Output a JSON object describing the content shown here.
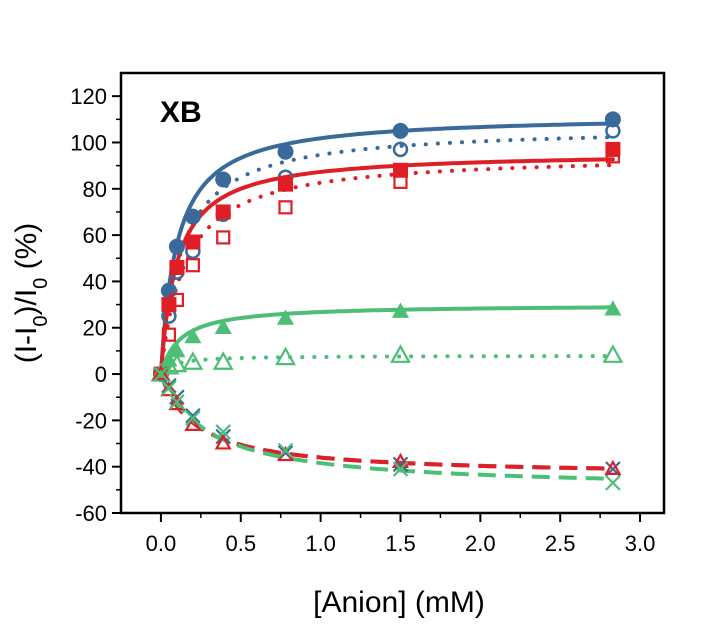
{
  "chart_data": {
    "type": "scatter",
    "title": "",
    "panel_label": "XB",
    "xlabel": "[Anion] (mM)",
    "ylabel": "(I-I0)/I0 (%)",
    "xlim": [
      -0.25,
      3.15
    ],
    "ylim": [
      -60,
      130
    ],
    "x_ticks": [
      0.0,
      0.5,
      1.0,
      1.5,
      2.0,
      2.5,
      3.0
    ],
    "x_tick_labels": [
      "0.0",
      "0.5",
      "1.0",
      "1.5",
      "2.0",
      "2.5",
      "3.0"
    ],
    "y_ticks": [
      -60,
      -40,
      -20,
      0,
      20,
      40,
      60,
      80,
      100,
      120
    ],
    "y_tick_labels": [
      "-60",
      "-40",
      "-20",
      "0",
      "20",
      "40",
      "60",
      "80",
      "100",
      "120"
    ],
    "grid": false,
    "legend": "none",
    "x": [
      0,
      0.05,
      0.1,
      0.2,
      0.39,
      0.78,
      1.5,
      2.83
    ],
    "series": [
      {
        "color": "#3a6a9a",
        "marker": "circle-filled",
        "line": "solid",
        "values": [
          0,
          36,
          55,
          68,
          84,
          96,
          105,
          110
        ],
        "fit": {
          "Bmax": 112,
          "Kd": 0.1
        }
      },
      {
        "color": "#3a6a9a",
        "marker": "circle-open",
        "line": "dotted",
        "values": [
          0,
          25,
          44,
          53,
          69,
          85,
          97,
          105
        ],
        "fit": {
          "Bmax": 107,
          "Kd": 0.13
        }
      },
      {
        "color": "#e01e25",
        "marker": "square-filled",
        "line": "solid",
        "values": [
          0,
          30,
          46,
          57,
          70,
          82,
          88,
          97
        ],
        "fit": {
          "Bmax": 96,
          "Kd": 0.1
        }
      },
      {
        "color": "#e01e25",
        "marker": "square-open",
        "line": "dotted",
        "values": [
          0,
          17,
          32,
          47,
          59,
          72,
          83,
          94
        ],
        "fit": {
          "Bmax": 95,
          "Kd": 0.15
        }
      },
      {
        "color": "#4cbe75",
        "marker": "triangle-filled",
        "line": "solid",
        "values": [
          0,
          6,
          10,
          16,
          20,
          24,
          27,
          28
        ],
        "fit": {
          "Bmax": 30,
          "Kd": 0.12
        }
      },
      {
        "color": "#4cbe75",
        "marker": "triangle-open",
        "line": "dotted",
        "values": [
          0,
          3,
          4,
          5,
          5,
          7,
          8,
          8
        ],
        "fit": {
          "Bmax": 8,
          "Kd": 0.08
        }
      },
      {
        "color": "#3a6a9a",
        "marker": "x",
        "line": "dashed",
        "values": [
          0,
          -5,
          -10,
          -18,
          -27,
          -34,
          -39,
          -41
        ],
        "fit": {
          "Bmax": -44,
          "Kd": 0.22
        }
      },
      {
        "color": "#e01e25",
        "marker": "triangle-open-small",
        "line": "dashed",
        "values": [
          0,
          -7,
          -13,
          -22,
          -30,
          -35,
          -38,
          -41
        ],
        "fit": {
          "Bmax": -44,
          "Kd": 0.22
        }
      },
      {
        "color": "#4cbe75",
        "marker": "x",
        "line": "dashed",
        "values": [
          0,
          -6,
          -12,
          -19,
          -25,
          -33,
          -41,
          -47
        ],
        "fit": {
          "Bmax": -50,
          "Kd": 0.3
        }
      }
    ]
  }
}
